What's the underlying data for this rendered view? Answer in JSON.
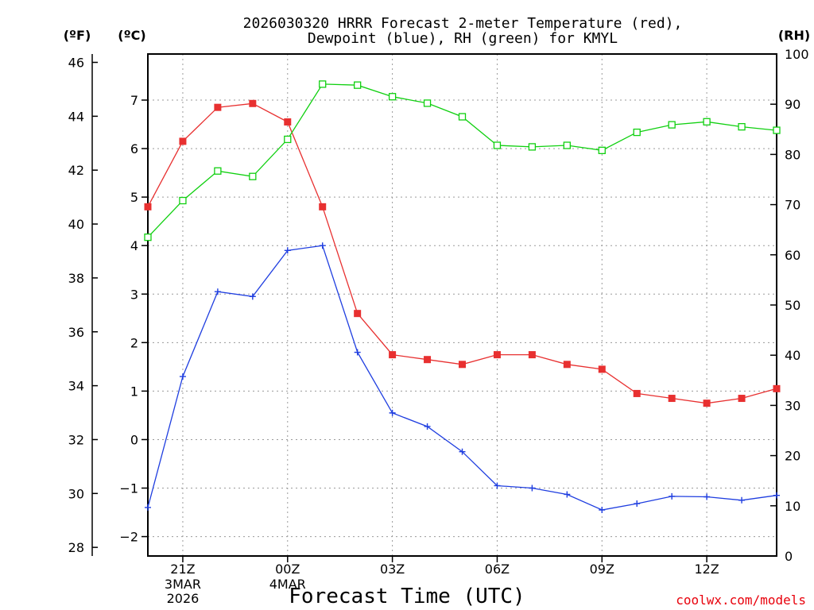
{
  "chart_data": {
    "type": "line",
    "title_lines": [
      "2026030320 HRRR Forecast 2-meter Temperature (red),",
      "Dewpoint (blue), RH (green) for KMYL"
    ],
    "xlabel": "Forecast Time (UTC)",
    "credit": "coolwx.com/models",
    "units": {
      "fahrenheit": "(ºF)",
      "celsius": "(ºC)",
      "rh": "(RH)"
    },
    "x": [
      20,
      21,
      22,
      23,
      24,
      25,
      26,
      27,
      28,
      29,
      30,
      31,
      32,
      33,
      34,
      35,
      36,
      37,
      38
    ],
    "xlim": [
      20,
      38
    ],
    "x_ticks": [
      {
        "x": 21,
        "label": "21Z",
        "sub": [
          "3MAR",
          "2026"
        ]
      },
      {
        "x": 24,
        "label": "00Z",
        "sub": [
          "4MAR"
        ]
      },
      {
        "x": 27,
        "label": "03Z",
        "sub": []
      },
      {
        "x": 30,
        "label": "06Z",
        "sub": []
      },
      {
        "x": 33,
        "label": "09Z",
        "sub": []
      },
      {
        "x": 36,
        "label": "12Z",
        "sub": []
      }
    ],
    "celsius_axis": {
      "range": [
        -2.4,
        7.95
      ],
      "ticks": [
        -2,
        -1,
        0,
        1,
        2,
        3,
        4,
        5,
        6,
        7
      ],
      "tick_labels": [
        "−2",
        "−1",
        "0",
        "1",
        "2",
        "3",
        "4",
        "5",
        "6",
        "7"
      ]
    },
    "fahrenheit_axis": {
      "ticks": [
        28,
        30,
        32,
        34,
        36,
        38,
        40,
        42,
        44,
        46
      ],
      "tick_labels": [
        "28",
        "30",
        "32",
        "34",
        "36",
        "38",
        "40",
        "42",
        "44",
        "46"
      ]
    },
    "rh_axis": {
      "range": [
        0,
        100
      ],
      "ticks": [
        0,
        10,
        20,
        30,
        40,
        50,
        60,
        70,
        80,
        90,
        100
      ],
      "tick_labels": [
        "0",
        "10",
        "20",
        "30",
        "40",
        "50",
        "60",
        "70",
        "80",
        "90",
        "100"
      ]
    },
    "grid": true,
    "series": [
      {
        "name": "Temperature",
        "axis": "celsius",
        "color": "#e83030",
        "marker": "filled-square",
        "values": [
          4.8,
          6.15,
          6.85,
          6.93,
          6.55,
          4.8,
          2.6,
          1.75,
          1.65,
          1.55,
          1.75,
          1.75,
          1.55,
          1.45,
          0.95,
          0.85,
          0.75,
          0.85,
          1.05
        ]
      },
      {
        "name": "Dewpoint",
        "axis": "celsius",
        "color": "#1f3ee0",
        "marker": "plus",
        "values": [
          -1.4,
          1.3,
          3.05,
          2.95,
          3.9,
          4.0,
          1.8,
          0.55,
          0.27,
          -0.25,
          -0.95,
          -1.0,
          -1.13,
          -1.45,
          -1.32,
          -1.17,
          -1.18,
          -1.25,
          -1.15
        ]
      },
      {
        "name": "RH",
        "axis": "rh",
        "color": "#10d010",
        "marker": "open-square",
        "values": [
          63.5,
          70.8,
          76.7,
          75.6,
          83.0,
          94.0,
          93.8,
          91.5,
          90.2,
          87.5,
          81.8,
          81.5,
          81.8,
          80.8,
          84.4,
          85.9,
          86.5,
          85.5,
          84.8
        ]
      }
    ]
  }
}
